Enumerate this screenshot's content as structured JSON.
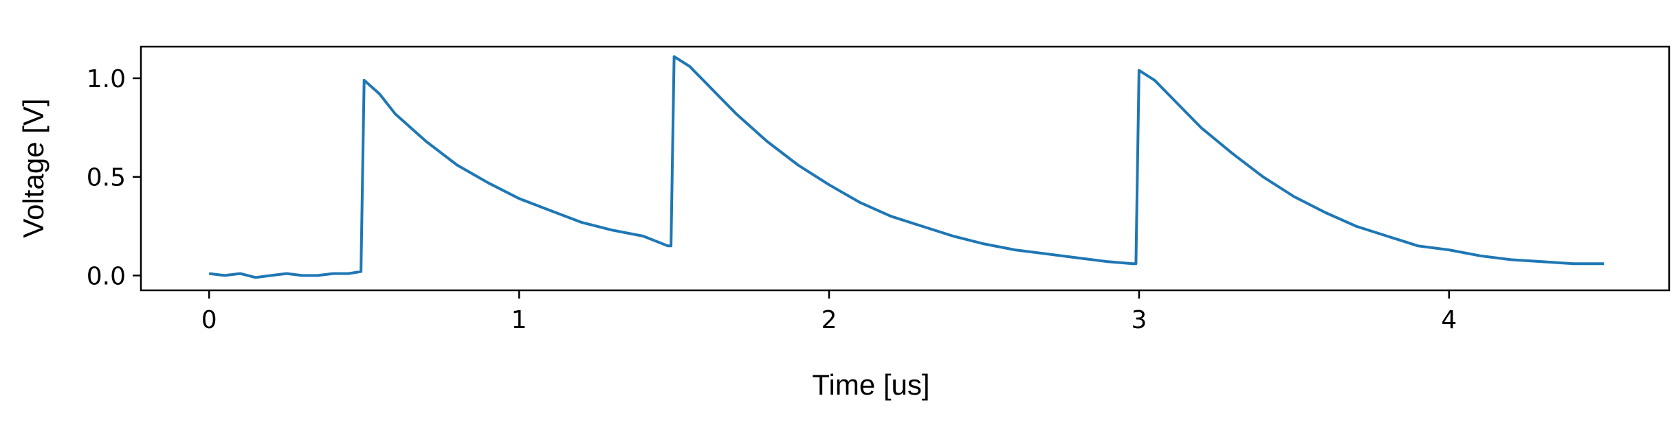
{
  "chart_data": {
    "type": "line",
    "xlabel": "Time [us]",
    "ylabel": "Voltage [V]",
    "xlim": [
      -0.22,
      4.71
    ],
    "ylim": [
      -0.075,
      1.16
    ],
    "x_ticks": [
      0,
      1,
      2,
      3,
      4
    ],
    "x_tick_labels": [
      "0",
      "1",
      "2",
      "3",
      "4"
    ],
    "y_ticks": [
      0.0,
      0.5,
      1.0
    ],
    "y_tick_labels": [
      "0.0",
      "0.5",
      "1.0"
    ],
    "grid": false,
    "legend": "none",
    "line_color": "#1f77b4",
    "series": [
      {
        "x": [
          0.0,
          0.05,
          0.1,
          0.15,
          0.2,
          0.25,
          0.3,
          0.35,
          0.4,
          0.45,
          0.49,
          0.5,
          0.55,
          0.6,
          0.7,
          0.8,
          0.9,
          1.0,
          1.1,
          1.2,
          1.3,
          1.4,
          1.48,
          1.49,
          1.5,
          1.55,
          1.6,
          1.7,
          1.8,
          1.9,
          2.0,
          2.1,
          2.2,
          2.3,
          2.4,
          2.5,
          2.6,
          2.7,
          2.8,
          2.9,
          2.98,
          2.99,
          3.0,
          3.05,
          3.1,
          3.2,
          3.3,
          3.4,
          3.5,
          3.6,
          3.7,
          3.8,
          3.9,
          4.0,
          4.1,
          4.2,
          4.3,
          4.4,
          4.5
        ],
        "y": [
          0.01,
          0.0,
          0.01,
          -0.01,
          0.0,
          0.01,
          0.0,
          0.0,
          0.01,
          0.01,
          0.02,
          0.99,
          0.92,
          0.82,
          0.68,
          0.56,
          0.47,
          0.39,
          0.33,
          0.27,
          0.23,
          0.2,
          0.15,
          0.15,
          1.11,
          1.06,
          0.98,
          0.82,
          0.68,
          0.56,
          0.46,
          0.37,
          0.3,
          0.25,
          0.2,
          0.16,
          0.13,
          0.11,
          0.09,
          0.07,
          0.06,
          0.06,
          1.04,
          0.99,
          0.91,
          0.75,
          0.62,
          0.5,
          0.4,
          0.32,
          0.25,
          0.2,
          0.15,
          0.13,
          0.1,
          0.08,
          0.07,
          0.06,
          0.06
        ]
      }
    ]
  }
}
